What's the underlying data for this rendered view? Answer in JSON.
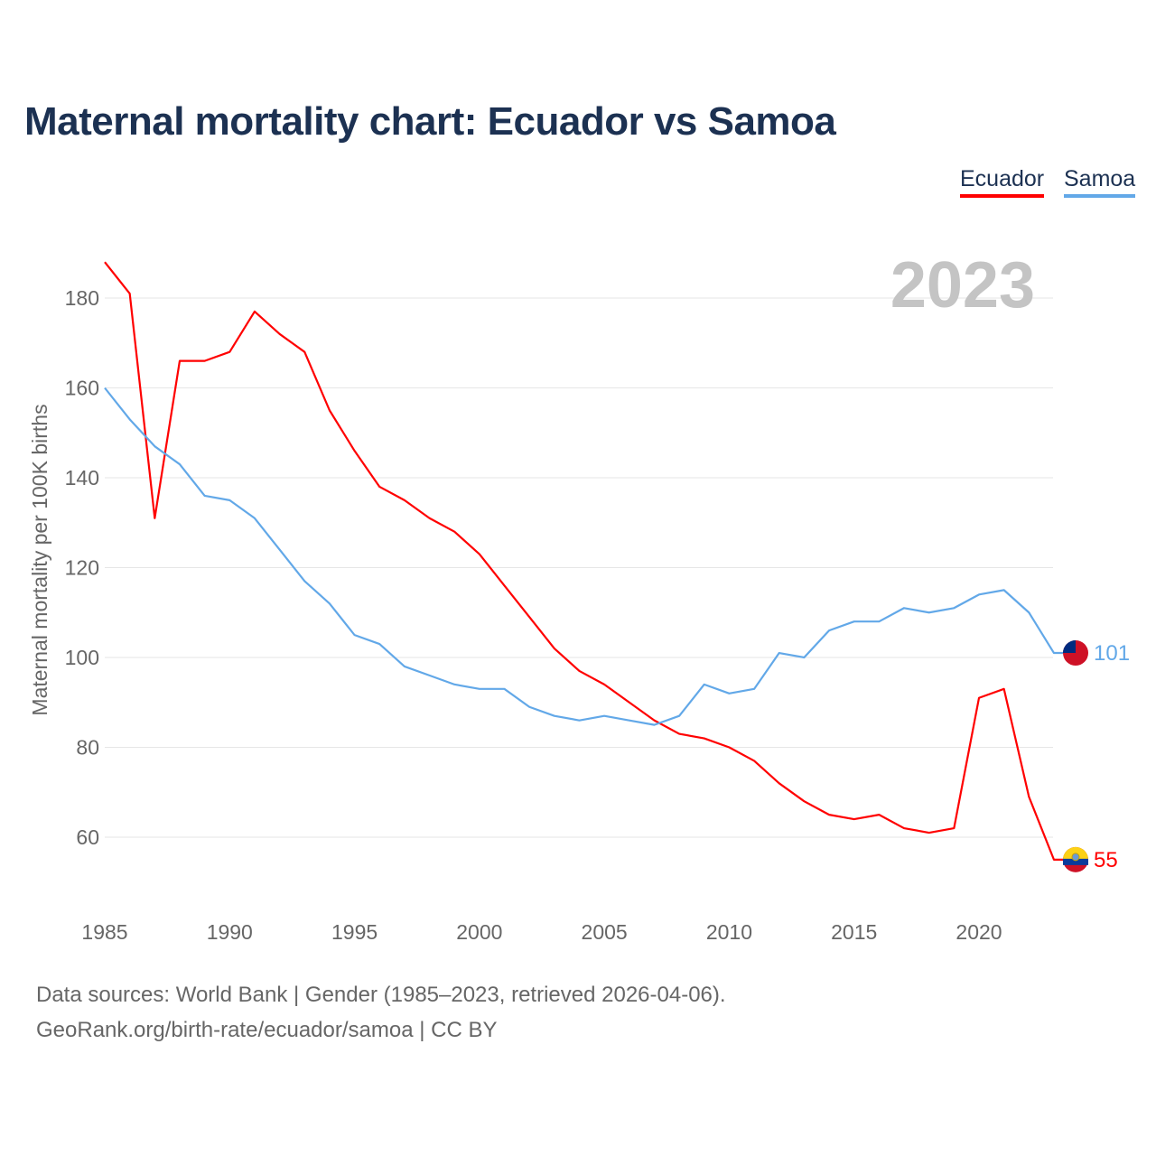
{
  "chart_data": {
    "type": "line",
    "title": "Maternal mortality chart: Ecuador vs Samoa",
    "ylabel": "Maternal mortality per 100K births",
    "xlabel": "",
    "year_label": "2023",
    "xlim": [
      1985,
      2023
    ],
    "ylim": [
      50,
      190
    ],
    "xticks": [
      1985,
      1990,
      1995,
      2000,
      2005,
      2010,
      2015,
      2020
    ],
    "yticks": [
      60,
      80,
      100,
      120,
      140,
      160,
      180
    ],
    "grid": true,
    "legend_placement": "top-right",
    "x": [
      1985,
      1986,
      1987,
      1988,
      1989,
      1990,
      1991,
      1992,
      1993,
      1994,
      1995,
      1996,
      1997,
      1998,
      1999,
      2000,
      2001,
      2002,
      2003,
      2004,
      2005,
      2006,
      2007,
      2008,
      2009,
      2010,
      2011,
      2012,
      2013,
      2014,
      2015,
      2016,
      2017,
      2018,
      2019,
      2020,
      2021,
      2022,
      2023
    ],
    "series": [
      {
        "name": "Ecuador",
        "color": "#ff0000",
        "end_label": "55",
        "values": [
          188,
          181,
          131,
          166,
          166,
          168,
          177,
          172,
          168,
          155,
          146,
          138,
          135,
          131,
          128,
          123,
          116,
          109,
          102,
          97,
          94,
          90,
          86,
          83,
          82,
          80,
          77,
          72,
          68,
          65,
          64,
          65,
          62,
          61,
          62,
          91,
          93,
          69,
          55
        ]
      },
      {
        "name": "Samoa",
        "color": "#62a8e8",
        "end_label": "101",
        "values": [
          160,
          153,
          147,
          143,
          136,
          135,
          131,
          124,
          117,
          112,
          105,
          103,
          98,
          96,
          94,
          93,
          93,
          89,
          87,
          86,
          87,
          86,
          85,
          87,
          94,
          92,
          93,
          101,
          100,
          106,
          108,
          108,
          111,
          110,
          111,
          114,
          115,
          110,
          101
        ]
      }
    ]
  },
  "footer": {
    "line1": "Data sources: World Bank | Gender (1985–2023, retrieved 2026-04-06).",
    "line2": "GeoRank.org/birth-rate/ecuador/samoa | CC BY"
  }
}
